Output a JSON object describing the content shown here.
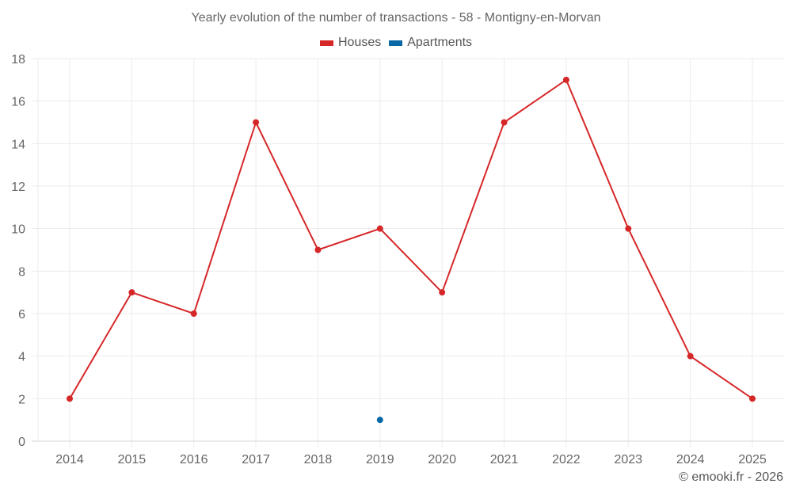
{
  "title": "Yearly evolution of the number of transactions - 58 - Montigny-en-Morvan",
  "legend": [
    {
      "label": "Houses",
      "color": "#d62728"
    },
    {
      "label": "Apartments",
      "color": "#0868a6"
    }
  ],
  "credit": "© emooki.fr - 2026",
  "chart_data": {
    "type": "line",
    "title": "Yearly evolution of the number of transactions - 58 - Montigny-en-Morvan",
    "xlabel": "",
    "ylabel": "",
    "categories": [
      "2014",
      "2015",
      "2016",
      "2017",
      "2018",
      "2019",
      "2020",
      "2021",
      "2022",
      "2023",
      "2024",
      "2025"
    ],
    "series": [
      {
        "name": "Houses",
        "color": "#d62728",
        "values": [
          2,
          7,
          6,
          15,
          9,
          10,
          7,
          15,
          17,
          10,
          4,
          2
        ]
      },
      {
        "name": "Apartments",
        "color": "#0868a6",
        "values": [
          null,
          null,
          null,
          null,
          null,
          1,
          null,
          null,
          null,
          null,
          null,
          null
        ]
      }
    ],
    "yticks": [
      0,
      2,
      4,
      6,
      8,
      10,
      12,
      14,
      16,
      18
    ],
    "ylim": [
      0,
      18
    ],
    "grid": true,
    "legend_position": "top"
  }
}
